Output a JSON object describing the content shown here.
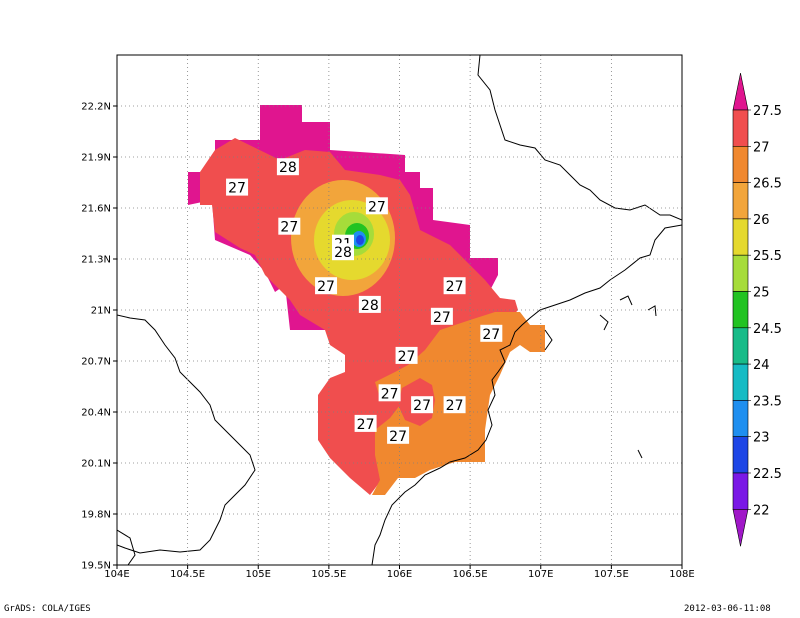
{
  "map": {
    "lon_ticks": [
      "104E",
      "104.5E",
      "105E",
      "105.5E",
      "106E",
      "106.5E",
      "107E",
      "107.5E",
      "108E"
    ],
    "lat_ticks": [
      "22.2N",
      "21.9N",
      "21.6N",
      "21.3N",
      "21N",
      "20.7N",
      "20.4N",
      "20.1N",
      "19.8N",
      "19.5N"
    ],
    "lon_range": [
      104,
      108
    ],
    "lat_range": [
      19.5,
      22.5
    ],
    "grid_style": "dotted",
    "field_colors": {
      "magenta": "#e0158f",
      "red": "#f04e4e",
      "orange": "#f0882f",
      "light_orange": "#f2a53b",
      "yellow": "#e5d92e",
      "light_green": "#a6dc3a",
      "green": "#22c322",
      "blue": "#1e46e6",
      "cyan_blue": "#1f8ff0"
    },
    "contour_labels": [
      {
        "text": "27",
        "lon": 104.85,
        "lat": 21.72
      },
      {
        "text": "28",
        "lon": 105.21,
        "lat": 21.84
      },
      {
        "text": "27",
        "lon": 105.22,
        "lat": 21.49
      },
      {
        "text": "27",
        "lon": 105.84,
        "lat": 21.61
      },
      {
        "text": "21",
        "lon": 105.6,
        "lat": 21.39
      },
      {
        "text": "28",
        "lon": 105.6,
        "lat": 21.34
      },
      {
        "text": "27",
        "lon": 105.48,
        "lat": 21.14
      },
      {
        "text": "28",
        "lon": 105.79,
        "lat": 21.03
      },
      {
        "text": "27",
        "lon": 106.39,
        "lat": 21.14
      },
      {
        "text": "27",
        "lon": 106.3,
        "lat": 20.96
      },
      {
        "text": "27",
        "lon": 106.65,
        "lat": 20.86
      },
      {
        "text": "27",
        "lon": 106.05,
        "lat": 20.73
      },
      {
        "text": "27",
        "lon": 105.93,
        "lat": 20.51
      },
      {
        "text": "27",
        "lon": 106.16,
        "lat": 20.44
      },
      {
        "text": "27",
        "lon": 106.39,
        "lat": 20.44
      },
      {
        "text": "27",
        "lon": 105.76,
        "lat": 20.33
      },
      {
        "text": "27",
        "lon": 105.99,
        "lat": 20.26
      }
    ]
  },
  "colorbar": {
    "levels": [
      "27.5",
      "27",
      "26.5",
      "26",
      "25.5",
      "25",
      "24.5",
      "24",
      "23.5",
      "23",
      "22.5",
      "22"
    ],
    "colors": [
      "#e0158f",
      "#f04e4e",
      "#f0882f",
      "#f2a53b",
      "#e5d92e",
      "#a6dc3a",
      "#22c322",
      "#18bb88",
      "#16bbc4",
      "#1f8ff0",
      "#1e46e6",
      "#7a18e6",
      "#a018c8"
    ]
  },
  "footer": {
    "left": "GrADS: COLA/IGES",
    "right": "2012-03-06-11:08"
  }
}
